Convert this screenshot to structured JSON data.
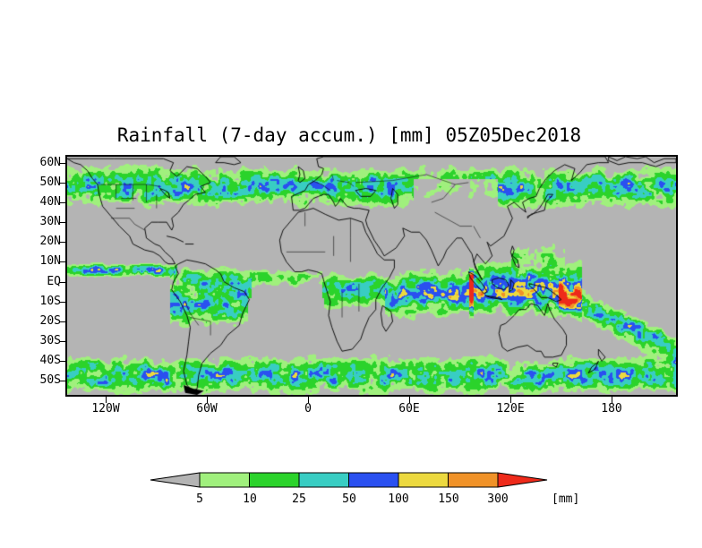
{
  "title": "Rainfall (7-day accum.) [mm] 05Z05Dec2018",
  "map": {
    "lat_labels": [
      "60N",
      "50N",
      "40N",
      "30N",
      "20N",
      "10N",
      "EQ",
      "10S",
      "20S",
      "30S",
      "40S",
      "50S"
    ],
    "lat_values": [
      60,
      50,
      40,
      30,
      20,
      10,
      0,
      -10,
      -20,
      -30,
      -40,
      -50
    ],
    "lon_labels": [
      "120W",
      "60W",
      "0",
      "60E",
      "120E",
      "180"
    ],
    "lon_values": [
      -120,
      -60,
      0,
      60,
      120,
      180
    ],
    "no_rain_color": "#b4b4b4"
  },
  "legend": {
    "unit_label": "[mm]",
    "labels": [
      "5",
      "10",
      "25",
      "50",
      "100",
      "150",
      "300"
    ],
    "below_color": "#b4b4b4",
    "bin_colors": [
      "#a0f07d",
      "#2bd32b",
      "#38cdc3",
      "#2a50f0",
      "#ecd93f",
      "#f09228"
    ],
    "above_color": "#ee2a1a"
  },
  "chart_data": {
    "type": "heatmap",
    "title": "Rainfall (7-day accum.) [mm] 05Z05Dec2018",
    "variable": "Rainfall (7-day accum.)",
    "unit": "mm",
    "timestamp": "05Z05Dec2018",
    "x_tick_labels": [
      "120W",
      "60W",
      "0",
      "60E",
      "120E",
      "180"
    ],
    "y_tick_labels": [
      "60N",
      "50N",
      "40N",
      "30N",
      "20N",
      "10N",
      "EQ",
      "10S",
      "20S",
      "30S",
      "40S",
      "50S"
    ],
    "colorbar": {
      "thresholds_mm": [
        5,
        10,
        25,
        50,
        100,
        150,
        300
      ],
      "below_color": "#b4b4b4",
      "bin_colors": [
        "#a0f07d",
        "#2bd32b",
        "#38cdc3",
        "#2a50f0",
        "#ecd93f",
        "#f09228"
      ],
      "above_color": "#ee2a1a"
    }
  }
}
